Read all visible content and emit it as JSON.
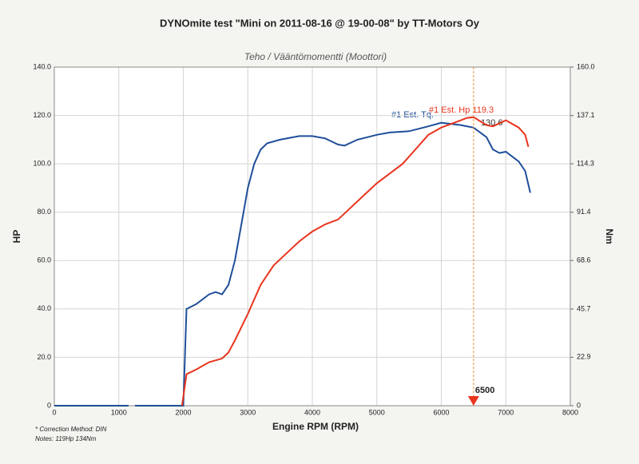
{
  "chart_data": {
    "type": "line",
    "title": "DYNOmite test \"Mini on 2011-08-16 @ 19-00-08\" by TT-Motors Oy",
    "subtitle": "Teho / Vääntömomentti (Moottori)",
    "x_label": "Engine RPM (RPM)",
    "y_label": "HP",
    "y2_label": "Nm",
    "xlim": [
      0,
      8000
    ],
    "xticks": [
      0,
      1000,
      2000,
      3000,
      4000,
      5000,
      6000,
      7000,
      8000
    ],
    "ylim": [
      0,
      140
    ],
    "yticks": [
      0,
      {
        "value": 20,
        "label": "20.0"
      },
      {
        "value": 40,
        "label": "40.0"
      },
      {
        "value": 60,
        "label": "60.0"
      },
      {
        "value": 80,
        "label": "80.0"
      },
      {
        "value": 100,
        "label": "100.0"
      },
      {
        "value": 120,
        "label": "120.0"
      },
      {
        "value": 140,
        "label": "140.0"
      }
    ],
    "y2lim": [
      0,
      160
    ],
    "y2ticks": [
      0,
      22.9,
      45.7,
      68.6,
      91.4,
      114.3,
      137.1,
      {
        "value": 160,
        "label": "160.0"
      }
    ],
    "grid": true,
    "series": [
      {
        "name": "#1 Est. Tq.",
        "color": "#1f4e9a",
        "axis": "y2",
        "x": [
          0,
          1150,
          1200,
          1250,
          2000,
          2050,
          2200,
          2400,
          2500,
          2600,
          2700,
          2800,
          2900,
          3000,
          3100,
          3200,
          3300,
          3500,
          3800,
          4000,
          4200,
          4400,
          4500,
          4700,
          5000,
          5200,
          5500,
          5800,
          6000,
          6300,
          6500,
          6700,
          6800,
          6900,
          7000,
          7200,
          7300,
          7380
        ],
        "values": [
          0,
          0,
          null,
          0,
          0,
          45.7,
          48,
          52.6,
          53.7,
          52.6,
          57.1,
          68.6,
          85.7,
          102.9,
          114.3,
          121.1,
          124,
          125.7,
          127.4,
          127.4,
          126.3,
          123.4,
          122.9,
          125.7,
          128,
          129.1,
          129.7,
          132,
          133.7,
          132.6,
          131.4,
          126.9,
          121.1,
          119.4,
          120,
          115.4,
          110.9,
          100.6
        ]
      },
      {
        "name": "#1 Est. Hp 119.3",
        "color": "#e8341c",
        "axis": "y",
        "x": [
          1980,
          2050,
          2200,
          2400,
          2600,
          2700,
          2800,
          3000,
          3200,
          3400,
          3600,
          3800,
          4000,
          4200,
          4400,
          4600,
          4800,
          5000,
          5200,
          5400,
          5600,
          5800,
          6000,
          6200,
          6400,
          6500,
          6700,
          6800,
          7000,
          7200,
          7300,
          7350
        ],
        "values": [
          0,
          13,
          15,
          18,
          19.5,
          22,
          27,
          38,
          50,
          58,
          63,
          68,
          72,
          75,
          77,
          82,
          87,
          92,
          96,
          100,
          106,
          112,
          115,
          117,
          119,
          119.3,
          116,
          115.5,
          118,
          115,
          112,
          107
        ]
      }
    ],
    "annotations": [
      {
        "text": "130.6"
      }
    ],
    "marker": {
      "x": 6500,
      "label": "6500"
    },
    "notes": [
      "* Correction Method: DIN",
      "Notes: 119Hp 134Nm"
    ]
  }
}
